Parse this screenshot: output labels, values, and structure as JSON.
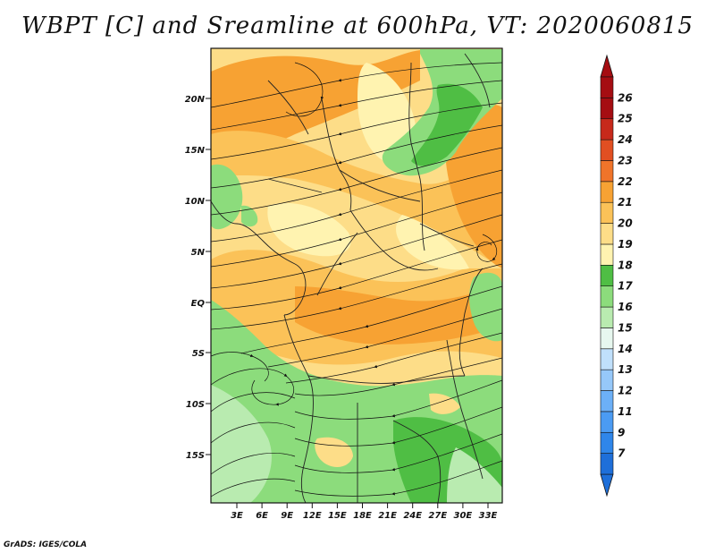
{
  "title": "WBPT [C] and Sreamline at 600hPa, VT: 2020060815",
  "credit": "GrADS: IGES/COLA",
  "map": {
    "lat_ticks": [
      "20N",
      "15N",
      "10N",
      "5N",
      "EQ",
      "5S",
      "10S",
      "15S"
    ],
    "lon_ticks": [
      "3E",
      "6E",
      "9E",
      "12E",
      "15E",
      "18E",
      "21E",
      "24E",
      "27E",
      "30E",
      "33E"
    ]
  },
  "colorbar": {
    "levels": [
      "7",
      "9",
      "11",
      "12",
      "13",
      "14",
      "15",
      "16",
      "17",
      "18",
      "19",
      "20",
      "21",
      "22",
      "23",
      "24",
      "25",
      "26"
    ],
    "colors": [
      "#1e6fd9",
      "#2f86ea",
      "#4b9bf3",
      "#6cb0f7",
      "#96c8f9",
      "#c0e0fb",
      "#e7f7ef",
      "#b9ebb0",
      "#8cdc7c",
      "#4fbe44",
      "#fff3b0",
      "#fddd88",
      "#fbc258",
      "#f7a233",
      "#f0742a",
      "#e14f22",
      "#c7291b",
      "#a50d12",
      "#a50d12"
    ],
    "under_color": "#1e6fd9",
    "over_color": "#a50d12"
  },
  "fields": {
    "colors": {
      "green_dark": "#4fbe44",
      "green_mid": "#8cdc7c",
      "green_light": "#b9ebb0",
      "yellow": "#fff3b0",
      "tan": "#fddd88",
      "orange_light": "#fbc258",
      "orange": "#f7a233"
    }
  }
}
